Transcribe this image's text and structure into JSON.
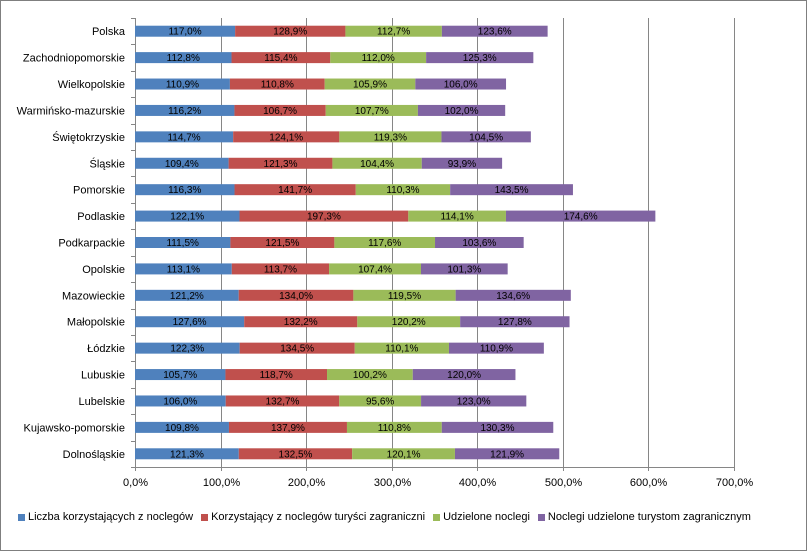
{
  "chart_data": {
    "type": "bar",
    "orientation": "horizontal",
    "stacked": true,
    "title": "",
    "xlabel": "",
    "ylabel": "",
    "xlim": [
      0,
      700
    ],
    "x_ticks": [
      0,
      100,
      200,
      300,
      400,
      500,
      600,
      700
    ],
    "x_tick_labels": [
      "0,0%",
      "100,0%",
      "200,0%",
      "300,0%",
      "400,0%",
      "500,0%",
      "600,0%",
      "700,0%"
    ],
    "grid": "vertical",
    "legend_position": "bottom",
    "categories": [
      "Polska",
      "Zachodniopomorskie",
      "Wielkopolskie",
      "Warmińsko-mazurskie",
      "Świętokrzyskie",
      "Śląskie",
      "Pomorskie",
      "Podlaskie",
      "Podkarpackie",
      "Opolskie",
      "Mazowieckie",
      "Małopolskie",
      "Łódzkie",
      "Lubuskie",
      "Lubelskie",
      "Kujawsko-pomorskie",
      "Dolnośląskie"
    ],
    "series": [
      {
        "name": "Liczba korzystających z noclegów",
        "color": "#4f81bd",
        "values": [
          117.0,
          112.8,
          110.9,
          116.2,
          114.7,
          109.4,
          116.3,
          122.1,
          111.5,
          113.1,
          121.2,
          127.6,
          122.3,
          105.7,
          106.0,
          109.8,
          121.3
        ],
        "labels": [
          "117,0%",
          "112,8%",
          "110,9%",
          "116,2%",
          "114,7%",
          "109,4%",
          "116,3%",
          "122,1%",
          "111,5%",
          "113,1%",
          "121,2%",
          "127,6%",
          "122,3%",
          "105,7%",
          "106,0%",
          "109,8%",
          "121,3%"
        ]
      },
      {
        "name": "Korzystający z noclegów turyści zagraniczni",
        "color": "#c0504d",
        "values": [
          128.9,
          115.4,
          110.8,
          106.7,
          124.1,
          121.3,
          141.7,
          197.3,
          121.5,
          113.7,
          134.0,
          132.2,
          134.5,
          118.7,
          132.7,
          137.9,
          132.5
        ],
        "labels": [
          "128,9%",
          "115,4%",
          "110,8%",
          "106,7%",
          "124,1%",
          "121,3%",
          "141,7%",
          "197,3%",
          "121,5%",
          "113,7%",
          "134,0%",
          "132,2%",
          "134,5%",
          "118,7%",
          "132,7%",
          "137,9%",
          "132,5%"
        ]
      },
      {
        "name": "Udzielone noclegi",
        "color": "#9bbb59",
        "values": [
          112.7,
          112.0,
          105.9,
          107.7,
          119.3,
          104.4,
          110.3,
          114.1,
          117.6,
          107.4,
          119.5,
          120.2,
          110.1,
          100.2,
          95.6,
          110.8,
          120.1
        ],
        "labels": [
          "112,7%",
          "112,0%",
          "105,9%",
          "107,7%",
          "119,3%",
          "104,4%",
          "110,3%",
          "114,1%",
          "117,6%",
          "107,4%",
          "119,5%",
          "120,2%",
          "110,1%",
          "100,2%",
          "95,6%",
          "110,8%",
          "120,1%"
        ]
      },
      {
        "name": "Noclegi udzielone turystom zagranicznym",
        "color": "#8064a2",
        "values": [
          123.6,
          125.3,
          106.0,
          102.0,
          104.5,
          93.9,
          143.5,
          174.6,
          103.6,
          101.3,
          134.6,
          127.8,
          110.9,
          120.0,
          123.0,
          130.3,
          121.9
        ],
        "labels": [
          "123,6%",
          "125,3%",
          "106,0%",
          "102,0%",
          "104,5%",
          "93,9%",
          "143,5%",
          "174,6%",
          "103,6%",
          "101,3%",
          "134,6%",
          "127,8%",
          "110,9%",
          "120,0%",
          "123,0%",
          "130,3%",
          "121,9%"
        ]
      }
    ]
  }
}
